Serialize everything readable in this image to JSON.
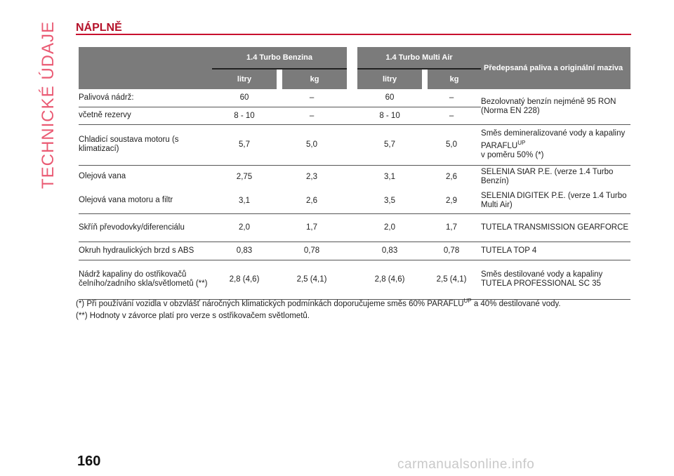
{
  "side_title": "TECHNICKÉ ÚDAJE",
  "section_title": "NÁPLNĚ",
  "header": {
    "engine1": "1.4 Turbo Benzina",
    "engine2": "1.4 Turbo Multi Air",
    "fuel_col": "Předepsaná paliva a originální maziva",
    "litry1": "litry",
    "kg1": "kg",
    "litry2": "litry",
    "kg2": "kg"
  },
  "rows": {
    "r1": {
      "label": "Palivová nádrž:",
      "v1": "60",
      "v2": "–",
      "v3": "60",
      "v4": "–"
    },
    "r2": {
      "label": "včetně rezervy",
      "v1": "8 - 10",
      "v2": "–",
      "v3": "8 - 10",
      "v4": "–"
    },
    "fuel_note": "Bezolovnatý benzín nejméně 95 RON (Norma EN 228)",
    "r3": {
      "label": "Chladicí soustava motoru (s klimatizací)",
      "v1": "5,7",
      "v2": "5,0",
      "v3": "5,7",
      "v4": "5,0",
      "note_a": "Směs demineralizované vody a kapaliny PARAFLU",
      "note_sup": "UP",
      "note_b": "v poměru 50% (*)"
    },
    "r4": {
      "label": "Olejová vana",
      "v1": "2,75",
      "v2": "2,3",
      "v3": "3,1",
      "v4": "2,6"
    },
    "r5": {
      "label": "Olejová vana motoru a filtr",
      "v1": "3,1",
      "v2": "2,6",
      "v3": "3,5",
      "v4": "2,9"
    },
    "oil_note_a": "SELENIA StAR P.E. (verze 1.4 Turbo Benzín)",
    "oil_note_b": "SELENIA DIGITEK P.E. (verze 1.4 Turbo Multi Air)",
    "r6": {
      "label": "Skříň převodovky/diferenciálu",
      "v1": "2,0",
      "v2": "1,7",
      "v3": "2,0",
      "v4": "1,7",
      "note": "TUTELA TRANSMISSION GEARFORCE"
    },
    "r7": {
      "label": "Okruh hydraulických brzd s ABS",
      "v1": "0,83",
      "v2": "0,78",
      "v3": "0,83",
      "v4": "0,78",
      "note": "TUTELA TOP 4"
    },
    "r8": {
      "label": "Nádrž kapaliny do ostřikovačů čelního/zadního skla/světlometů (**)",
      "v1": "2,8 (4,6)",
      "v2": "2,5 (4,1)",
      "v3": "2,8 (4,6)",
      "v4": "2,5 (4,1)",
      "note": "Směs destilované vody a kapaliny TUTELA PROFESSIONAL SC 35"
    }
  },
  "footnote1": {
    "a": "(*) Při používání vozidla v obzvlášť náročných klimatických podmínkách doporučujeme směs 60% PARAFLU",
    "sup": "UP",
    "b": " a 40% destilované vody."
  },
  "footnote2": "(**) Hodnoty v závorce platí pro verze s ostřikovačem světlometů.",
  "page_number": "160",
  "watermark": "carmanualsonline.info"
}
